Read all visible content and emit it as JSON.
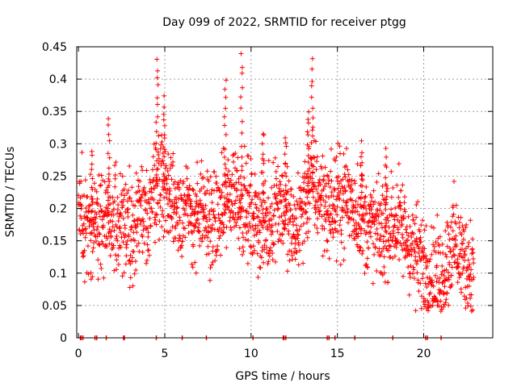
{
  "chart_data": {
    "type": "scatter",
    "title": "Day 099 of 2022, SRMTID for receiver ptgg",
    "xlabel": "GPS time / hours",
    "ylabel": "SRMTID / TECUs",
    "xlim": [
      -0.1,
      24
    ],
    "ylim": [
      0,
      0.45
    ],
    "xticks": [
      0,
      5,
      10,
      15,
      20
    ],
    "xtick_labels": [
      "0",
      "5",
      "10",
      "15",
      "20"
    ],
    "yticks": [
      0,
      0.05,
      0.1,
      0.15,
      0.2,
      0.25,
      0.3,
      0.35,
      0.4,
      0.45
    ],
    "ytick_labels": [
      "0",
      "0.05",
      "0.1",
      "0.15",
      "0.2",
      "0.25",
      "0.3",
      "0.35",
      "0.4",
      "0.45"
    ],
    "grid": true,
    "marker": "plus",
    "series": [
      {
        "name": "SRMTID",
        "color": "#ff0000",
        "trend": [
          [
            0.0,
            0.19
          ],
          [
            1.0,
            0.17
          ],
          [
            2.0,
            0.18
          ],
          [
            3.0,
            0.17
          ],
          [
            4.0,
            0.19
          ],
          [
            4.6,
            0.25
          ],
          [
            5.5,
            0.21
          ],
          [
            6.5,
            0.19
          ],
          [
            8.0,
            0.18
          ],
          [
            9.0,
            0.23
          ],
          [
            10.0,
            0.19
          ],
          [
            11.0,
            0.17
          ],
          [
            11.5,
            0.22
          ],
          [
            12.5,
            0.16
          ],
          [
            13.5,
            0.24
          ],
          [
            14.5,
            0.2
          ],
          [
            15.5,
            0.22
          ],
          [
            16.5,
            0.18
          ],
          [
            17.5,
            0.16
          ],
          [
            18.5,
            0.18
          ],
          [
            19.5,
            0.13
          ],
          [
            20.5,
            0.1
          ],
          [
            21.0,
            0.09
          ],
          [
            21.7,
            0.15
          ],
          [
            22.3,
            0.12
          ],
          [
            22.8,
            0.1
          ]
        ],
        "spikes": [
          [
            4.55,
            0.43
          ],
          [
            4.95,
            0.37
          ],
          [
            8.5,
            0.4
          ],
          [
            9.45,
            0.44
          ],
          [
            13.55,
            0.43
          ],
          [
            13.3,
            0.35
          ],
          [
            1.75,
            0.34
          ],
          [
            0.75,
            0.29
          ],
          [
            10.7,
            0.32
          ],
          [
            12.0,
            0.31
          ],
          [
            16.4,
            0.3
          ],
          [
            17.8,
            0.29
          ]
        ],
        "zero_points": [
          0.1,
          0.15,
          0.25,
          0.95,
          1.05,
          1.6,
          2.6,
          2.65,
          4.5,
          6.0,
          7.4,
          10.1,
          11.85,
          11.9,
          12.0,
          14.4,
          14.5,
          14.85,
          16.0,
          18.2,
          20.1,
          20.2,
          21.0
        ]
      }
    ]
  }
}
